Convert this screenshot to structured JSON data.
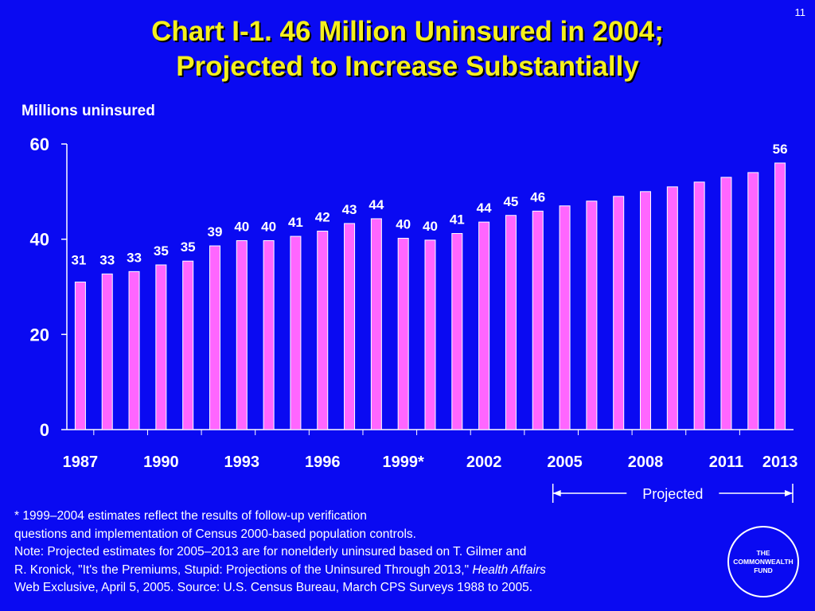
{
  "slide": {
    "number": "11"
  },
  "title": {
    "line1": "Chart I-1. 46 Million Uninsured in 2004;",
    "line2": "Projected to Increase Substantially"
  },
  "colors": {
    "background": "#0a0af2",
    "title": "#f5f01e",
    "bar_fill": "#ff66ff",
    "bar_edge": "#ffffff",
    "text": "#ffffff"
  },
  "chart_data": {
    "type": "bar",
    "ylabel": "Millions uninsured",
    "ylim": [
      0,
      60
    ],
    "yticks": [
      0,
      20,
      40,
      60
    ],
    "years": [
      1987,
      1988,
      1989,
      1990,
      1991,
      1992,
      1993,
      1994,
      1995,
      1996,
      1997,
      1998,
      1999,
      2000,
      2001,
      2002,
      2003,
      2004,
      2005,
      2006,
      2007,
      2008,
      2009,
      2010,
      2011,
      2012,
      2013
    ],
    "values": [
      31,
      32.7,
      33.2,
      34.6,
      35.4,
      38.6,
      39.7,
      39.7,
      40.6,
      41.7,
      43.3,
      44.3,
      40.2,
      39.8,
      41.2,
      43.6,
      45.0,
      45.9,
      47.0,
      48.0,
      49.0,
      50.0,
      51.0,
      52.0,
      53.0,
      54.0,
      56.0
    ],
    "data_labels": [
      "31",
      "33",
      "33",
      "35",
      "35",
      "39",
      "40",
      "40",
      "41",
      "42",
      "43",
      "44",
      "40",
      "40",
      "41",
      "44",
      "45",
      "46",
      "",
      "",
      "",
      "",
      "",
      "",
      "",
      "",
      "56"
    ],
    "x_tick_labels": [
      {
        "index": 0,
        "label": "1987"
      },
      {
        "index": 3,
        "label": "1990"
      },
      {
        "index": 6,
        "label": "1993"
      },
      {
        "index": 9,
        "label": "1996"
      },
      {
        "index": 12,
        "label": "1999*"
      },
      {
        "index": 15,
        "label": "2002"
      },
      {
        "index": 18,
        "label": "2005"
      },
      {
        "index": 21,
        "label": "2008"
      },
      {
        "index": 24,
        "label": "2011"
      },
      {
        "index": 26,
        "label": "2013"
      }
    ],
    "projected": {
      "label": "Projected",
      "from": 2005,
      "to": 2013
    },
    "grid": false,
    "legend": "none"
  },
  "footnote": {
    "line1": "* 1999–2004 estimates reflect the results of follow-up verification",
    "line2": "questions and implementation of Census 2000-based population controls.",
    "line3": "Note: Projected estimates for 2005–2013 are for nonelderly uninsured based on T. Gilmer and",
    "line4_a": "R. Kronick, \"It's the Premiums, Stupid: Projections of the Uninsured Through 2013,\"",
    "line4_b": "Health Affairs",
    "line5": "Web Exclusive, April 5, 2005. Source: U.S. Census Bureau, March CPS Surveys 1988 to 2005."
  },
  "logo": {
    "line1": "THE",
    "line2": "COMMONWEALTH",
    "line3": "FUND"
  }
}
